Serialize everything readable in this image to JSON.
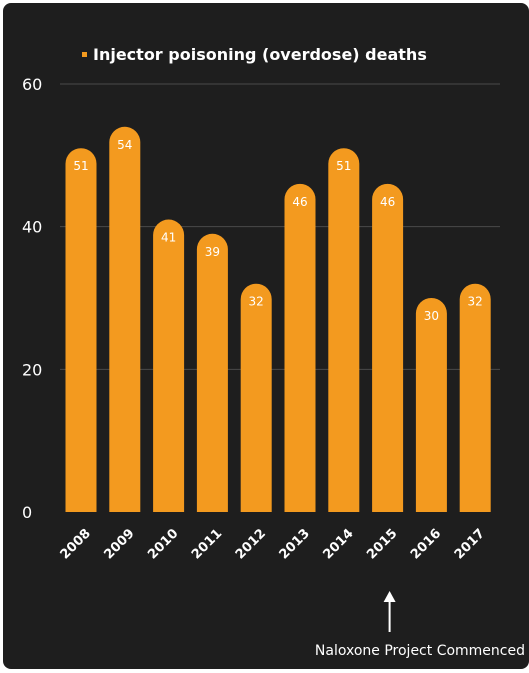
{
  "colors": {
    "page_background": "#ffffff",
    "panel_background": "#1e1e1e",
    "bar": "#f39a1f",
    "text": "#ffffff",
    "gridline": "#4a4a4a"
  },
  "chart_data": {
    "type": "bar",
    "categories": [
      "2008",
      "2009",
      "2010",
      "2011",
      "2012",
      "2013",
      "2014",
      "2015",
      "2016",
      "2017"
    ],
    "series": [
      {
        "name": "Injector poisoning (overdose) deaths",
        "values": [
          51,
          54,
          41,
          39,
          32,
          46,
          51,
          46,
          30,
          32
        ]
      }
    ],
    "data_labels": [
      "51",
      "54",
      "41",
      "39",
      "32",
      "46",
      "51",
      "46",
      "30",
      "32"
    ],
    "ylim": [
      0,
      60
    ],
    "yticks": [
      0,
      20,
      40,
      60
    ],
    "ytick_labels": [
      "0",
      "20",
      "40",
      "60"
    ],
    "grid": true,
    "legend_position": "top",
    "bar_style": "rounded-top",
    "xtick_rotation": "diagonal",
    "annotation": {
      "text": "Naloxone Project Commenced",
      "category": "2015",
      "marker": "up-arrow"
    }
  }
}
